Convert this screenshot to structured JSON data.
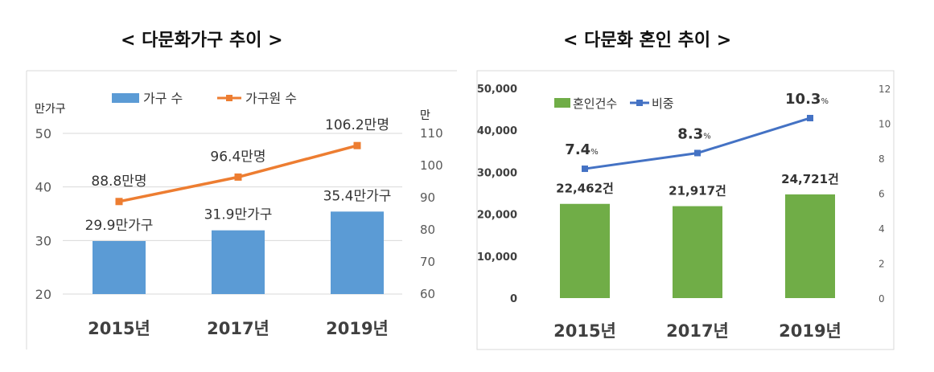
{
  "colors": {
    "bar_blue": "#5b9bd5",
    "line_orange": "#ed7d31",
    "bar_green": "#70ad47",
    "line_blue": "#4472c4",
    "grid": "#d9d9d9",
    "axis_text": "#595959"
  },
  "chart_data": [
    {
      "type": "bar",
      "title": "< 다문화가구 추이 >",
      "categories": [
        "2015년",
        "2017년",
        "2019년"
      ],
      "ylabel": "만가구",
      "ylim": [
        20,
        50
      ],
      "yticks": [
        "20",
        "30",
        "40",
        "50"
      ],
      "y2label": "만",
      "y2lim": [
        60,
        110
      ],
      "y2ticks": [
        "60",
        "70",
        "80",
        "90",
        "100",
        "110"
      ],
      "grid": true,
      "legend": "top",
      "series": [
        {
          "name": "가구 수",
          "type": "bar",
          "axis": "left",
          "values": [
            29.9,
            31.9,
            35.4
          ],
          "labels": [
            "29.9만가구",
            "31.9만가구",
            "35.4만가구"
          ]
        },
        {
          "name": "가구원 수",
          "type": "line",
          "axis": "right",
          "values": [
            88.8,
            96.4,
            106.2
          ],
          "labels": [
            "88.8만명",
            "96.4만명",
            "106.2만명"
          ]
        }
      ]
    },
    {
      "type": "bar",
      "title": "< 다문화 혼인 추이 >",
      "categories": [
        "2015년",
        "2017년",
        "2019년"
      ],
      "ylim": [
        0,
        50000
      ],
      "yticks": [
        "0",
        "10,000",
        "20,000",
        "30,000",
        "40,000",
        "50,000"
      ],
      "y2lim": [
        0,
        12
      ],
      "y2ticks": [
        "0",
        "2",
        "4",
        "6",
        "8",
        "10",
        "12"
      ],
      "grid": false,
      "legend": "top-left",
      "series": [
        {
          "name": "혼인건수",
          "type": "bar",
          "axis": "left",
          "values": [
            22462,
            21917,
            24721
          ],
          "labels": [
            "22,462건",
            "21,917건",
            "24,721건"
          ]
        },
        {
          "name": "비중",
          "type": "line",
          "axis": "right",
          "values": [
            7.4,
            8.3,
            10.3
          ],
          "labels": [
            "7.4",
            "8.3",
            "10.3"
          ],
          "label_unit": "%"
        }
      ]
    }
  ]
}
